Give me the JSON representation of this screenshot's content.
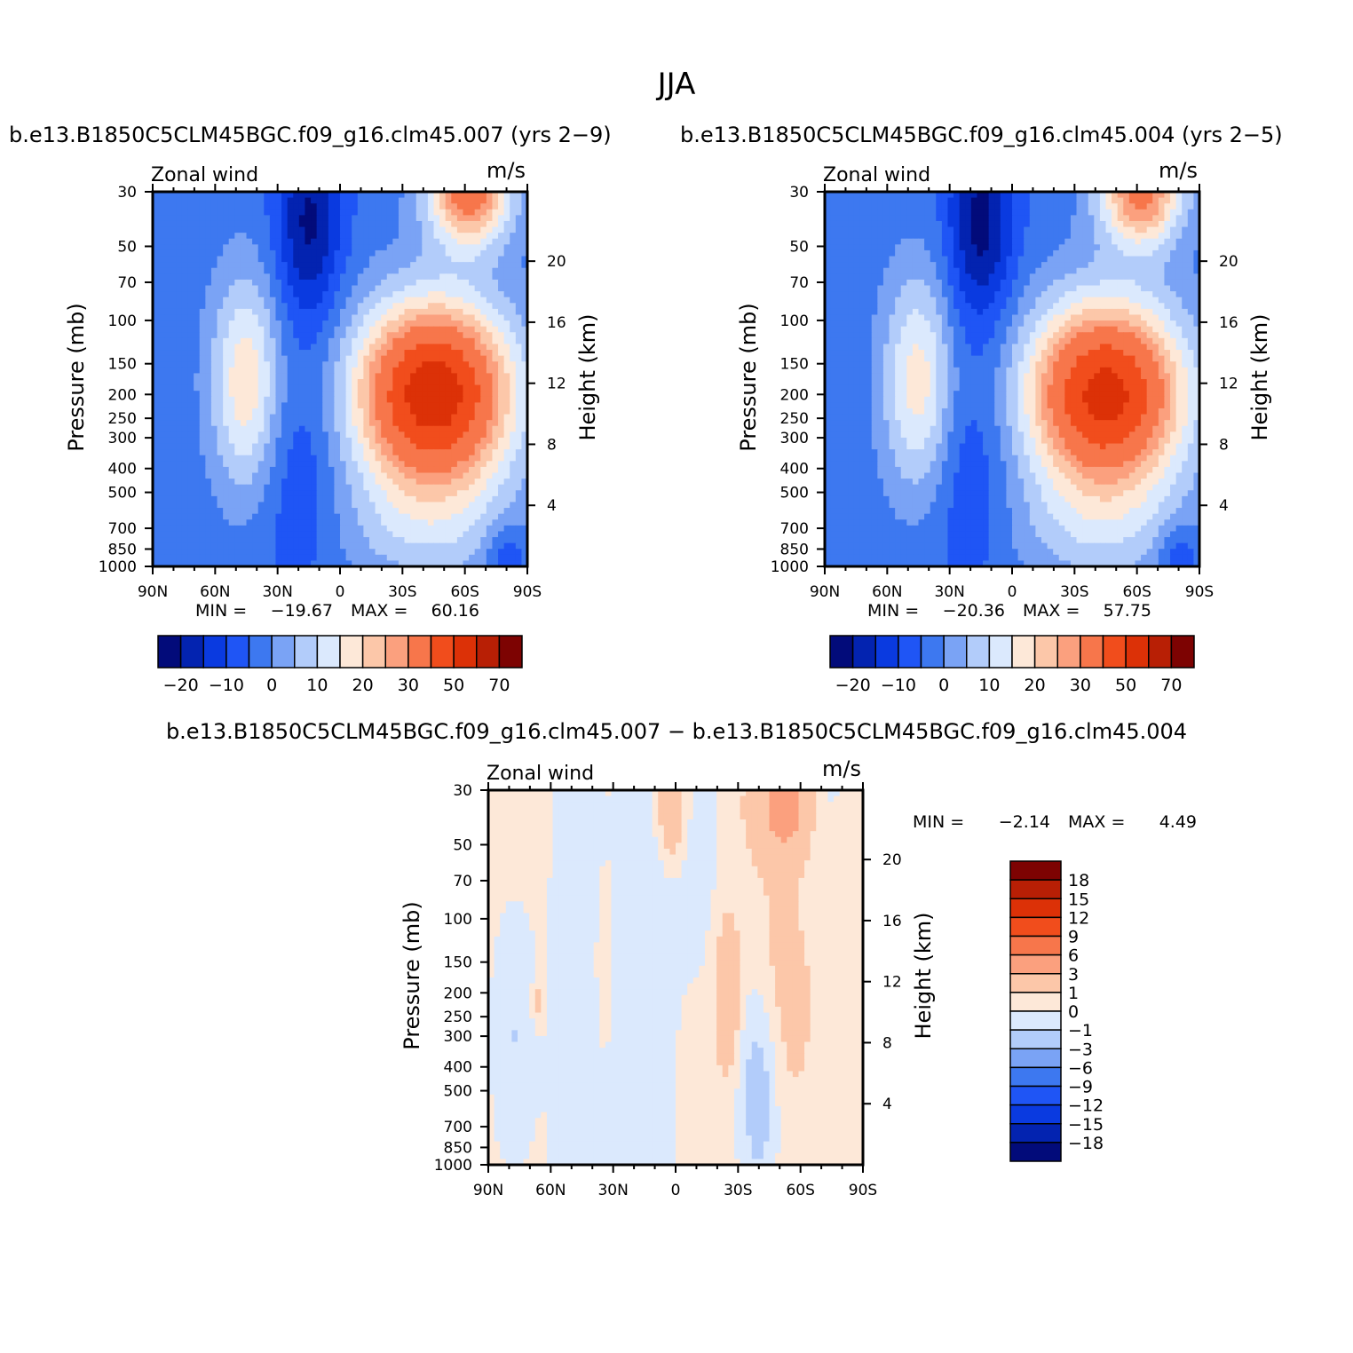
{
  "figure": {
    "title": "JJA",
    "case_left": "b.e13.B1850C5CLM45BGC.f09_g16.clm45.007 (yrs 2−9)",
    "case_right": "b.e13.B1850C5CLM45BGC.f09_g16.clm45.004 (yrs 2−5)",
    "diff_title": "b.e13.B1850C5CLM45BGC.f09_g16.clm45.007 − b.e13.B1850C5CLM45BGC.f09_g16.clm45.004"
  },
  "chart_data": [
    {
      "type": "contour",
      "id": "p1",
      "left_string": "Zonal wind",
      "right_string": "m/s",
      "xlabel": "",
      "ylabel": "Pressure (mb)",
      "y2label": "Height (km)",
      "x_ticks": [
        "90N",
        "60N",
        "30N",
        "0",
        "30S",
        "60S",
        "90S"
      ],
      "xlim": [
        90,
        -90
      ],
      "y_ticks": [
        30,
        50,
        70,
        100,
        150,
        200,
        250,
        300,
        400,
        500,
        700,
        850,
        1000
      ],
      "ylim": [
        1000,
        30
      ],
      "y2_ticks": [
        4,
        8,
        12,
        16,
        20
      ],
      "stats": {
        "min_label": "MIN =",
        "min": "−19.67",
        "max_label": "MAX =",
        "max": "60.16"
      },
      "levels": [
        -25,
        -20,
        -15,
        -10,
        -5,
        0,
        5,
        10,
        15,
        20,
        25,
        30,
        40,
        50,
        60,
        70
      ],
      "colorbar_labels": [
        "−20",
        "−10",
        "0",
        "10",
        "20",
        "30",
        "50",
        "70"
      ],
      "colors": [
        "#020b7a",
        "#0323b0",
        "#0a3ae0",
        "#1f55f5",
        "#3d78f0",
        "#7aa3f5",
        "#b2ccfa",
        "#dbe9fd",
        "#fde8d8",
        "#fcc7a9",
        "#fba07e",
        "#f7764b",
        "#f14d1c",
        "#dc3107",
        "#b81f05",
        "#7d0302"
      ],
      "field": {
        "background": -3,
        "features": [
          {
            "lat": -45,
            "p": 200,
            "value": 60,
            "sx": 26,
            "sz": 4.2
          },
          {
            "lat": -62,
            "p": 30,
            "value": 38,
            "sx": 14,
            "sz": 2.5
          },
          {
            "lat": -42,
            "p": 700,
            "value": 10,
            "sx": 30,
            "sz": 3.0
          },
          {
            "lat": 45,
            "p": 180,
            "value": 22,
            "sx": 12,
            "sz": 5.0
          },
          {
            "lat": 15,
            "p": 40,
            "value": -18,
            "sx": 11,
            "sz": 4.5
          },
          {
            "lat": 20,
            "p": 400,
            "value": -7,
            "sx": 14,
            "sz": 6.0
          },
          {
            "lat": -80,
            "p": 900,
            "value": -9,
            "sx": 7,
            "sz": 1.5
          }
        ]
      }
    },
    {
      "type": "contour",
      "id": "p2",
      "left_string": "Zonal wind",
      "right_string": "m/s",
      "xlabel": "",
      "ylabel": "Pressure (mb)",
      "y2label": "Height (km)",
      "x_ticks": [
        "90N",
        "60N",
        "30N",
        "0",
        "30S",
        "60S",
        "90S"
      ],
      "xlim": [
        90,
        -90
      ],
      "y_ticks": [
        30,
        50,
        70,
        100,
        150,
        200,
        250,
        300,
        400,
        500,
        700,
        850,
        1000
      ],
      "ylim": [
        1000,
        30
      ],
      "y2_ticks": [
        4,
        8,
        12,
        16,
        20
      ],
      "stats": {
        "min_label": "MIN =",
        "min": "−20.36",
        "max_label": "MAX =",
        "max": "57.75"
      },
      "levels": [
        -25,
        -20,
        -15,
        -10,
        -5,
        0,
        5,
        10,
        15,
        20,
        25,
        30,
        40,
        50,
        60,
        70
      ],
      "colorbar_labels": [
        "−20",
        "−10",
        "0",
        "10",
        "20",
        "30",
        "50",
        "70"
      ],
      "colors": [
        "#020b7a",
        "#0323b0",
        "#0a3ae0",
        "#1f55f5",
        "#3d78f0",
        "#7aa3f5",
        "#b2ccfa",
        "#dbe9fd",
        "#fde8d8",
        "#fcc7a9",
        "#fba07e",
        "#f7764b",
        "#f14d1c",
        "#dc3107",
        "#b81f05",
        "#7d0302"
      ],
      "field": {
        "background": -3,
        "features": [
          {
            "lat": -45,
            "p": 200,
            "value": 57,
            "sx": 26,
            "sz": 4.2
          },
          {
            "lat": -62,
            "p": 30,
            "value": 36,
            "sx": 14,
            "sz": 2.5
          },
          {
            "lat": -42,
            "p": 700,
            "value": 10,
            "sx": 30,
            "sz": 3.0
          },
          {
            "lat": 45,
            "p": 180,
            "value": 21,
            "sx": 12,
            "sz": 5.0
          },
          {
            "lat": 15,
            "p": 40,
            "value": -19,
            "sx": 11,
            "sz": 4.5
          },
          {
            "lat": 20,
            "p": 400,
            "value": -7,
            "sx": 14,
            "sz": 6.0
          },
          {
            "lat": -80,
            "p": 900,
            "value": -9,
            "sx": 7,
            "sz": 1.5
          }
        ]
      }
    },
    {
      "type": "contour",
      "id": "p3",
      "left_string": "Zonal wind",
      "right_string": "m/s",
      "xlabel": "",
      "ylabel": "Pressure (mb)",
      "y2label": "Height (km)",
      "x_ticks": [
        "90N",
        "60N",
        "30N",
        "0",
        "30S",
        "60S",
        "90S"
      ],
      "xlim": [
        90,
        -90
      ],
      "y_ticks": [
        30,
        50,
        70,
        100,
        150,
        200,
        250,
        300,
        400,
        500,
        700,
        850,
        1000
      ],
      "ylim": [
        1000,
        30
      ],
      "y2_ticks": [
        4,
        8,
        12,
        16,
        20
      ],
      "stats": {
        "min_label": "MIN =",
        "min": "−2.14",
        "max_label": "MAX =",
        "max": "4.49"
      },
      "levels": [
        -21,
        -18,
        -15,
        -12,
        -9,
        -6,
        -3,
        -1,
        0,
        1,
        3,
        6,
        9,
        12,
        15,
        18,
        21
      ],
      "colorbar_labels": [
        "18",
        "15",
        "12",
        "9",
        "6",
        "3",
        "1",
        "0",
        "−1",
        "−3",
        "−6",
        "−9",
        "−12",
        "−15",
        "−18"
      ],
      "colors": [
        "#020b7a",
        "#0323b0",
        "#0a3ae0",
        "#1f55f5",
        "#3d78f0",
        "#7aa3f5",
        "#b2ccfa",
        "#dbe9fd",
        "#fde8d8",
        "#fcc7a9",
        "#fba07e",
        "#f7764b",
        "#f14d1c",
        "#dc3107",
        "#b81f05",
        "#7d0302"
      ],
      "field": {
        "background": 0.5,
        "features": [
          {
            "lat": 78,
            "p": 300,
            "value": -1.5,
            "sx": 8,
            "sz": 6.0
          },
          {
            "lat": 48,
            "p": 300,
            "value": -1.3,
            "sx": 9,
            "sz": 30.0
          },
          {
            "lat": 15,
            "p": 300,
            "value": -1.3,
            "sx": 10,
            "sz": 30.0
          },
          {
            "lat": -10,
            "p": 40,
            "value": -1.0,
            "sx": 10,
            "sz": 8.0
          },
          {
            "lat": -40,
            "p": 500,
            "value": -2.4,
            "sx": 7,
            "sz": 5.0
          },
          {
            "lat": -70,
            "p": 30,
            "value": -1.2,
            "sx": 8,
            "sz": 5.0
          },
          {
            "lat": -53,
            "p": 35,
            "value": 3.4,
            "sx": 11,
            "sz": 2.5
          },
          {
            "lat": -52,
            "p": 200,
            "value": 1.1,
            "sx": 10,
            "sz": 6.0
          },
          {
            "lat": -25,
            "p": 200,
            "value": 2.4,
            "sx": 4,
            "sz": 3.5
          },
          {
            "lat": 2,
            "p": 35,
            "value": 3.0,
            "sx": 5,
            "sz": 2.5
          },
          {
            "lat": 66,
            "p": 220,
            "value": 1.6,
            "sx": 2,
            "sz": 1.0
          },
          {
            "lat": 35,
            "p": 150,
            "value": 0.9,
            "sx": 2,
            "sz": 3.0
          }
        ]
      }
    }
  ]
}
